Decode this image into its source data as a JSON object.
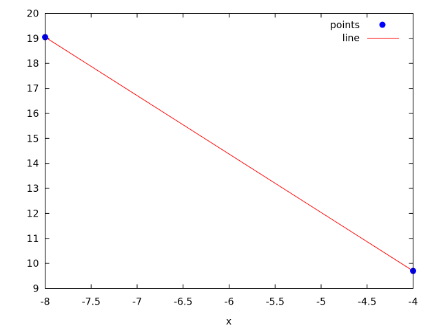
{
  "chart_data": {
    "type": "line",
    "title": "",
    "xlabel": "x",
    "ylabel": "",
    "xlim": [
      -8,
      -4
    ],
    "ylim": [
      9,
      20
    ],
    "xticks": [
      -8,
      -7.5,
      -7,
      -6.5,
      -6,
      -5.5,
      -5,
      -4.5,
      -4
    ],
    "xtick_labels": [
      "-8",
      "-7.5",
      "-7",
      "-6.5",
      "-6",
      "-5.5",
      "-5",
      "-4.5",
      "-4"
    ],
    "yticks": [
      9,
      10,
      11,
      12,
      13,
      14,
      15,
      16,
      17,
      18,
      19,
      20
    ],
    "ytick_labels": [
      "9",
      "10",
      "11",
      "12",
      "13",
      "14",
      "15",
      "16",
      "17",
      "18",
      "19",
      "20"
    ],
    "grid": false,
    "legend_position": "top-right",
    "series": [
      {
        "name": "points",
        "style": "points",
        "color": "#0000ff",
        "x": [
          -8,
          -4
        ],
        "y": [
          19.05,
          9.7
        ]
      },
      {
        "name": "line",
        "style": "line",
        "color": "#ff0000",
        "x": [
          -8,
          -4
        ],
        "y": [
          19.05,
          9.7
        ]
      }
    ]
  }
}
